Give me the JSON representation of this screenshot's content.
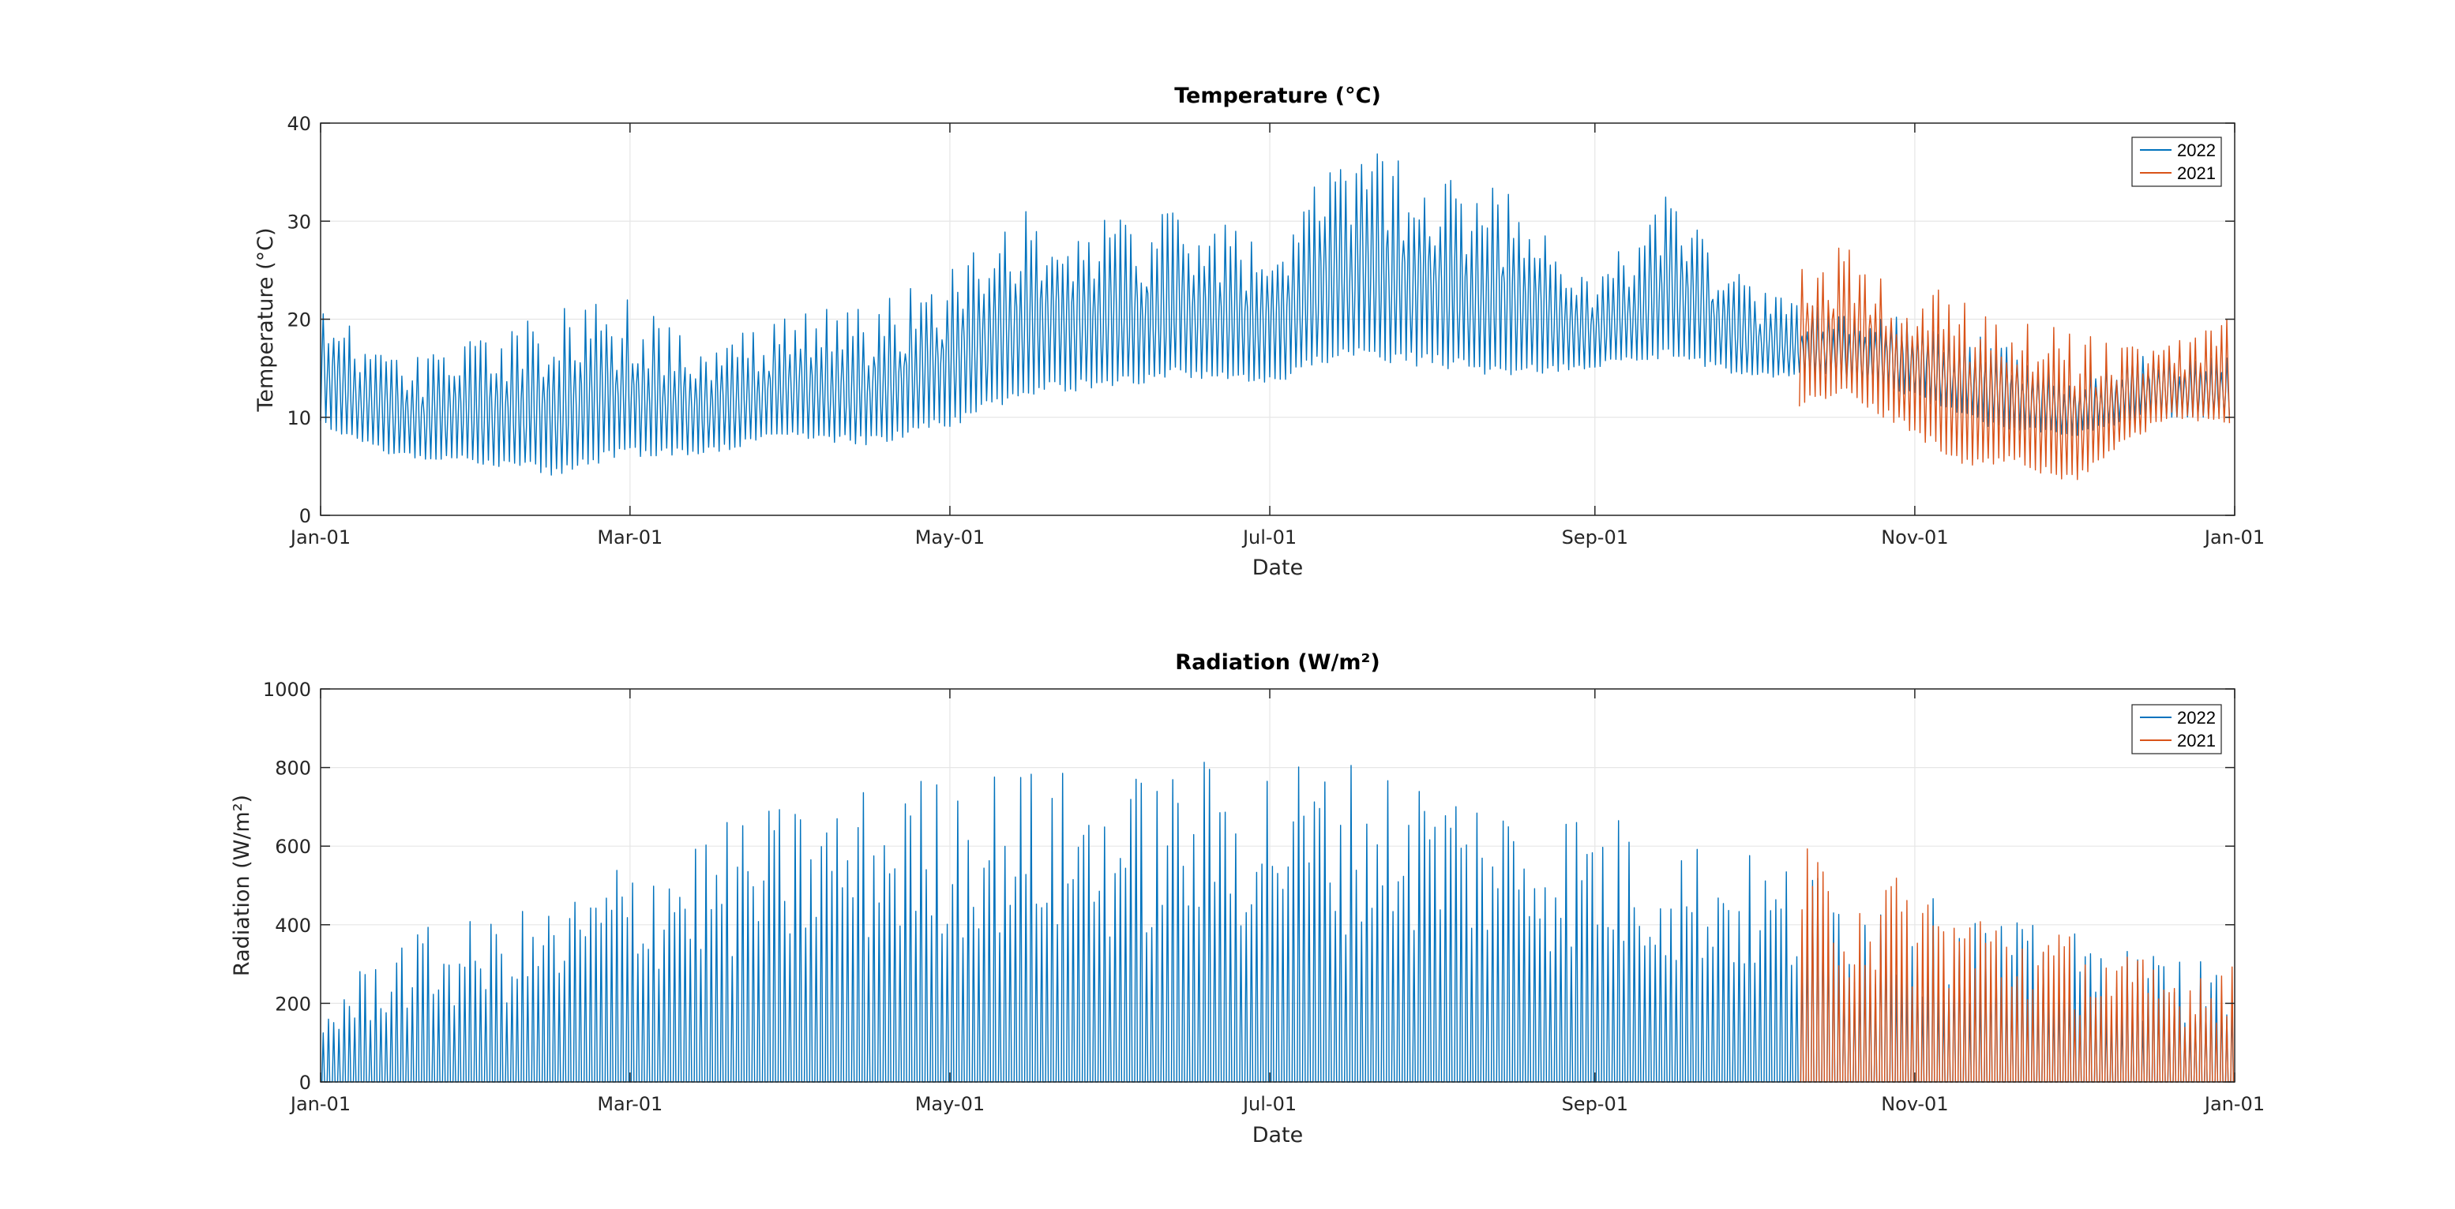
{
  "colors": {
    "series_2022": "#0072BD",
    "series_2021": "#D95319",
    "grid": "#e6e6e6",
    "axis": "#262626"
  },
  "chart_data": [
    {
      "type": "line",
      "title": "Temperature (°C)",
      "xlabel": "Date",
      "ylabel": "Temperature (°C)",
      "ylim": [
        0,
        40
      ],
      "xlim": [
        "Jan-01",
        "Jan-01"
      ],
      "grid": true,
      "legend_position": "top-right",
      "x_ticks": [
        "Jan-01",
        "Mar-01",
        "May-01",
        "Jul-01",
        "Sep-01",
        "Nov-01",
        "Jan-01"
      ],
      "y_ticks": [
        0,
        10,
        20,
        30,
        40
      ],
      "series": [
        {
          "name": "2022",
          "x": [
            "01-01",
            "01-15",
            "02-01",
            "02-15",
            "03-01",
            "03-15",
            "04-01",
            "04-15",
            "05-01",
            "05-15",
            "06-01",
            "06-15",
            "07-01",
            "07-15",
            "08-01",
            "08-15",
            "09-01",
            "09-15",
            "10-01",
            "10-15",
            "11-01",
            "11-15",
            "12-01",
            "12-15",
            "12-31"
          ],
          "min": [
            9,
            6,
            5,
            4,
            6,
            6,
            8,
            7,
            9,
            12,
            13,
            14,
            13,
            16,
            15,
            14,
            15,
            16,
            14,
            14,
            12,
            9,
            8,
            10,
            10
          ],
          "max": [
            22,
            16,
            18,
            21,
            22,
            17,
            21,
            21,
            25,
            31,
            30,
            31,
            28,
            38,
            35,
            33,
            24,
            33,
            23,
            21,
            20,
            18,
            14,
            17,
            16
          ]
        },
        {
          "name": "2021",
          "x": [
            "10-10",
            "10-20",
            "11-01",
            "11-10",
            "11-20",
            "12-01",
            "12-10",
            "12-20",
            "12-31"
          ],
          "min": [
            11,
            12,
            8,
            5,
            5,
            3,
            7,
            10,
            9
          ],
          "max": [
            28,
            27,
            24,
            22,
            20,
            19,
            17,
            18,
            20
          ]
        }
      ]
    },
    {
      "type": "line",
      "title": "Radiation (W/m²)",
      "xlabel": "Date",
      "ylabel": "Radiation (W/m²)",
      "ylim": [
        0,
        1000
      ],
      "xlim": [
        "Jan-01",
        "Jan-01"
      ],
      "grid": true,
      "legend_position": "top-right",
      "x_ticks": [
        "Jan-01",
        "Mar-01",
        "May-01",
        "Jul-01",
        "Sep-01",
        "Nov-01",
        "Jan-01"
      ],
      "y_ticks": [
        0,
        200,
        400,
        600,
        800,
        1000
      ],
      "series": [
        {
          "name": "2022",
          "x": [
            "01-01",
            "01-15",
            "02-01",
            "02-15",
            "03-01",
            "03-15",
            "04-01",
            "04-15",
            "05-01",
            "05-15",
            "06-01",
            "06-15",
            "07-01",
            "07-15",
            "08-01",
            "08-15",
            "09-01",
            "09-15",
            "10-01",
            "10-15",
            "11-01",
            "11-15",
            "12-01",
            "12-15",
            "12-31"
          ],
          "daily_peak": [
            200,
            380,
            420,
            460,
            600,
            650,
            720,
            760,
            800,
            810,
            780,
            820,
            840,
            830,
            800,
            740,
            700,
            650,
            580,
            540,
            480,
            420,
            380,
            330,
            300
          ]
        },
        {
          "name": "2021",
          "x": [
            "10-10",
            "10-20",
            "11-01",
            "11-10",
            "11-20",
            "12-01",
            "12-10",
            "12-20",
            "12-31"
          ],
          "daily_peak": [
            600,
            560,
            520,
            470,
            420,
            380,
            330,
            300,
            340
          ]
        }
      ]
    }
  ]
}
